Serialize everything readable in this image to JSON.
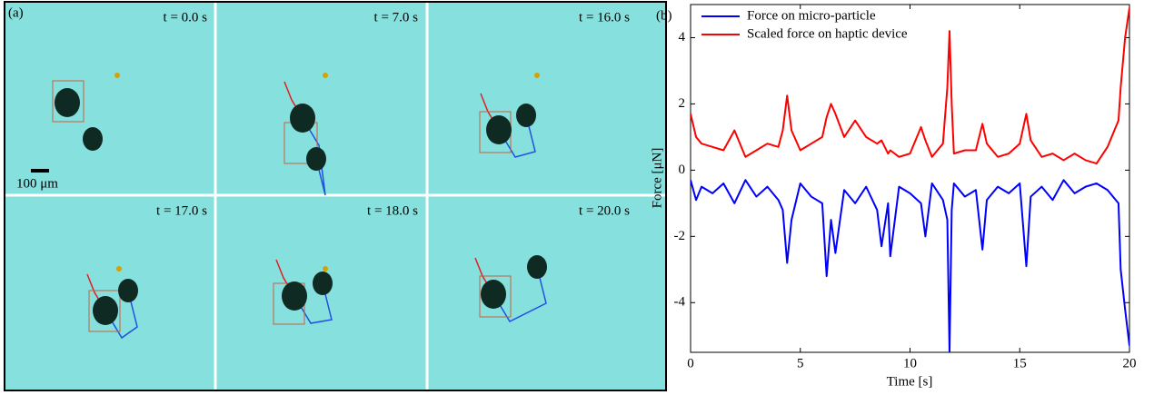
{
  "panel_a": {
    "label": "(a)",
    "times": [
      "t = 0.0 s",
      "t = 7.0 s",
      "t = 16.0 s",
      "t = 17.0 s",
      "t = 18.0 s",
      "t = 20.0 s"
    ],
    "scale_bar": "100 μm"
  },
  "chart_data": {
    "type": "line",
    "panel_label": "(b)",
    "xlabel": "Time [s]",
    "ylabel": "Force [μN]",
    "xlim": [
      0,
      20
    ],
    "xticks": [
      0,
      5,
      10,
      15,
      20
    ],
    "ylim": [
      -5.5,
      5
    ],
    "yticks": [
      -4,
      -2,
      0,
      2,
      4
    ],
    "legend": "upper left",
    "x": [
      0,
      0.25,
      0.5,
      1,
      1.5,
      2,
      2.5,
      3,
      3.5,
      4,
      4.2,
      4.4,
      4.6,
      5,
      5.5,
      6,
      6.2,
      6.4,
      6.6,
      7,
      7.5,
      8,
      8.5,
      8.7,
      9,
      9.1,
      9.5,
      10,
      10.5,
      10.7,
      11,
      11.5,
      11.7,
      11.8,
      11.9,
      12,
      12.5,
      13,
      13.3,
      13.5,
      14,
      14.5,
      15,
      15.3,
      15.5,
      16,
      16.5,
      17,
      17.5,
      18,
      18.5,
      19,
      19.5,
      19.6,
      19.8,
      20
    ],
    "series": [
      {
        "name": "Force on micro-particle",
        "color": "#0000ff",
        "values": [
          -0.3,
          -0.9,
          -0.5,
          -0.7,
          -0.4,
          -1.0,
          -0.3,
          -0.8,
          -0.5,
          -0.9,
          -1.2,
          -2.8,
          -1.5,
          -0.4,
          -0.8,
          -1.0,
          -3.2,
          -1.5,
          -2.5,
          -0.6,
          -1.0,
          -0.5,
          -1.2,
          -2.3,
          -1.0,
          -2.6,
          -0.5,
          -0.7,
          -1.0,
          -2.0,
          -0.4,
          -0.9,
          -1.5,
          -5.5,
          -1.2,
          -0.4,
          -0.8,
          -0.6,
          -2.4,
          -0.9,
          -0.5,
          -0.7,
          -0.4,
          -2.9,
          -0.8,
          -0.5,
          -0.9,
          -0.3,
          -0.7,
          -0.5,
          -0.4,
          -0.6,
          -1.0,
          -3.0,
          -4.2,
          -5.3
        ]
      },
      {
        "name": "Scaled force on haptic device",
        "color": "#ff0000",
        "values": [
          1.7,
          1.0,
          0.8,
          0.7,
          0.6,
          1.2,
          0.4,
          0.6,
          0.8,
          0.7,
          1.2,
          2.25,
          1.2,
          0.6,
          0.8,
          1.0,
          1.6,
          2.0,
          1.7,
          1.0,
          1.5,
          1.0,
          0.8,
          0.9,
          0.5,
          0.6,
          0.4,
          0.5,
          1.3,
          0.9,
          0.4,
          0.8,
          2.5,
          4.2,
          2.0,
          0.5,
          0.6,
          0.6,
          1.4,
          0.8,
          0.4,
          0.5,
          0.8,
          1.7,
          0.9,
          0.4,
          0.5,
          0.3,
          0.5,
          0.3,
          0.2,
          0.7,
          1.5,
          2.5,
          4.0,
          4.9
        ]
      }
    ]
  }
}
